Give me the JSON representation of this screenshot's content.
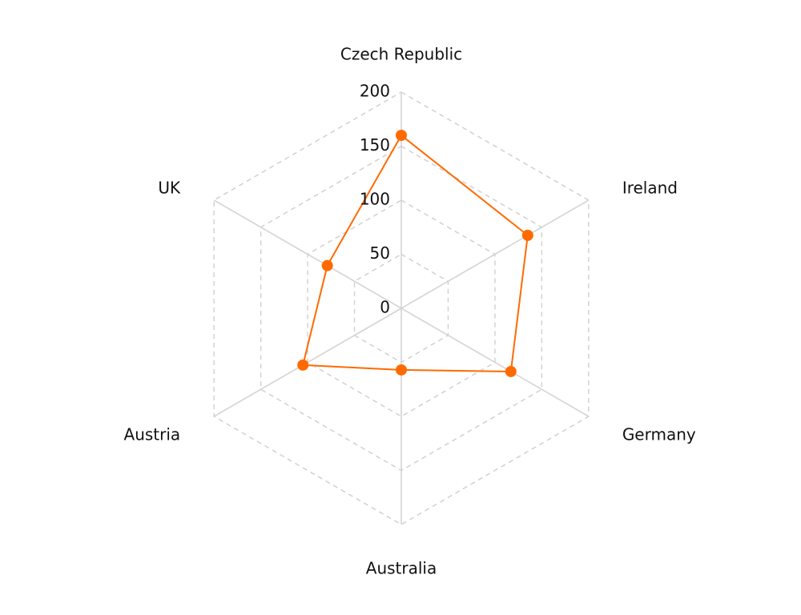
{
  "chart_data": {
    "type": "radar",
    "categories": [
      "Czech Republic",
      "Ireland",
      "Germany",
      "Australia",
      "Austria",
      "UK"
    ],
    "series": [
      {
        "values": [
          160,
          135,
          117,
          57,
          105,
          79
        ],
        "color": "#ff6a00"
      }
    ],
    "rlim": [
      0,
      200
    ],
    "ticks": [
      0,
      50,
      100,
      150,
      200
    ],
    "tick_labels": [
      "0",
      "50",
      "100",
      "150",
      "200"
    ],
    "grid": true
  }
}
